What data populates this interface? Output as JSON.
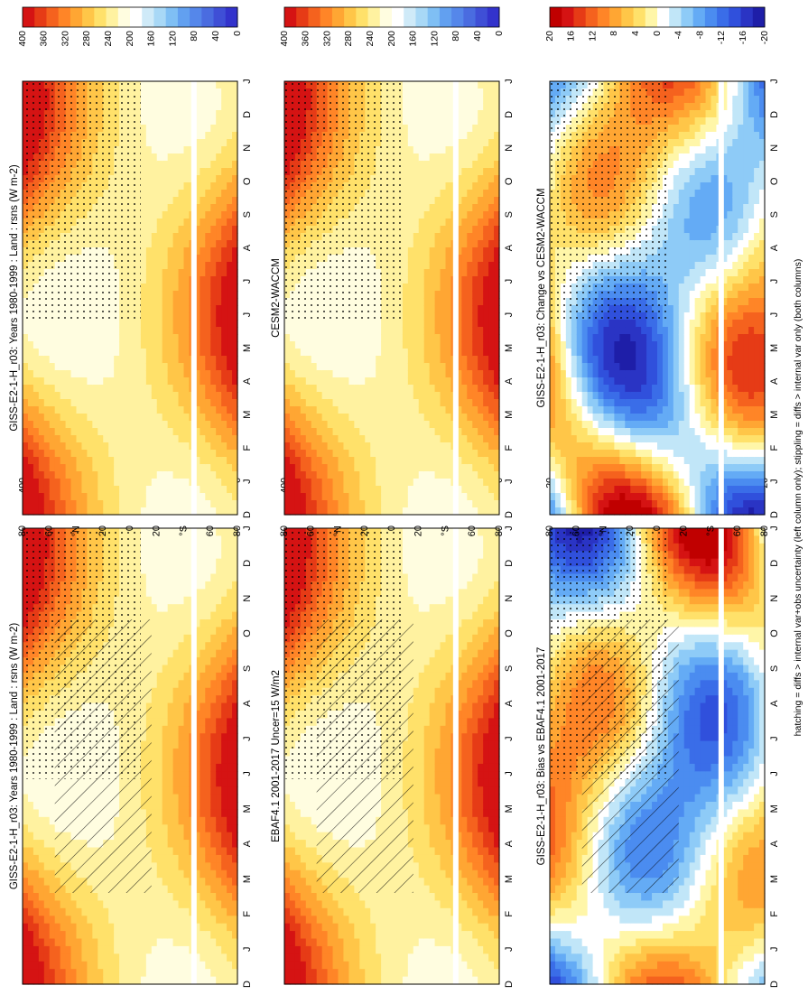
{
  "figure": {
    "footnote": "hatching = diffs > internal var+obs uncertainty (left column only); stippling = diffs > internal var only (both columns)"
  },
  "months": [
    "D",
    "J",
    "F",
    "M",
    "A",
    "M",
    "J",
    "J",
    "A",
    "S",
    "O",
    "N",
    "D",
    "J"
  ],
  "latitude_ticks": [
    "80",
    "60",
    "°N",
    "20",
    "0",
    "20",
    "°S",
    "60",
    "80"
  ],
  "colors": {
    "abs_scale": [
      "#3333cc",
      "#3f4fd6",
      "#4a6ce0",
      "#5587ea",
      "#62a0f0",
      "#7fbff4",
      "#a8d8f6",
      "#cfeaf8",
      "#ffffff",
      "#fffde0",
      "#fff2a0",
      "#ffe16a",
      "#ffc648",
      "#ffa633",
      "#ff8527",
      "#f5621e",
      "#e63b16",
      "#d51313"
    ],
    "diff_scale": [
      "#1e1ea8",
      "#2a34c4",
      "#3050dc",
      "#3a6de8",
      "#4b8cf0",
      "#64abf5",
      "#8ecbf7",
      "#c1e6f8",
      "#ffffff",
      "#fff6a8",
      "#ffe16a",
      "#ffc648",
      "#ffa633",
      "#ff8527",
      "#f5621e",
      "#e63b16",
      "#d51313",
      "#c00000"
    ]
  },
  "chart_data": [
    {
      "type": "heatmap",
      "title": "GISS-E2-1-H_r03: Years 1980-1999 : Land : rsns (W m-2)",
      "x_labels": [
        "D",
        "J",
        "F",
        "M",
        "A",
        "M",
        "J",
        "J",
        "A",
        "S",
        "O",
        "N",
        "D",
        "J"
      ],
      "y_labels": [
        "80",
        "60",
        "°N",
        "20",
        "0",
        "20",
        "°S",
        "60",
        "80"
      ],
      "colorbar": {
        "ticks": [
          "400",
          "360",
          "320",
          "280",
          "240",
          "200",
          "160",
          "120",
          "80",
          "40",
          "0"
        ],
        "range": [
          0,
          400
        ]
      },
      "hatching": true,
      "stippling": true
    },
    {
      "type": "heatmap",
      "title": "GISS-E2-1-H_r03: Years 1980-1999 : Land : rsns (W m-2)",
      "x_labels": [
        "D",
        "J",
        "F",
        "M",
        "A",
        "M",
        "J",
        "J",
        "A",
        "S",
        "O",
        "N",
        "D",
        "J"
      ],
      "y_labels": [
        "80",
        "60",
        "°N",
        "20",
        "0",
        "20",
        "°S",
        "60",
        "80"
      ],
      "colorbar": {
        "ticks": [
          "400",
          "360",
          "320",
          "280",
          "240",
          "200",
          "160",
          "120",
          "80",
          "40",
          "0"
        ],
        "range": [
          0,
          400
        ]
      },
      "stippling": true
    },
    {
      "type": "heatmap",
      "title": "EBAF4.1 2001-2017 Uncer=15 W/m2",
      "x_labels": [
        "D",
        "J",
        "F",
        "M",
        "A",
        "M",
        "J",
        "J",
        "A",
        "S",
        "O",
        "N",
        "D",
        "J"
      ],
      "y_labels": [
        "80",
        "60",
        "°N",
        "20",
        "0",
        "20",
        "°S",
        "60",
        "80"
      ],
      "colorbar": {
        "ticks": [
          "400",
          "360",
          "320",
          "280",
          "240",
          "200",
          "160",
          "120",
          "80",
          "40",
          "0"
        ],
        "range": [
          0,
          400
        ]
      },
      "hatching": true,
      "stippling": true
    },
    {
      "type": "heatmap",
      "title": "CESM2-WACCM",
      "x_labels": [
        "D",
        "J",
        "F",
        "M",
        "A",
        "M",
        "J",
        "J",
        "A",
        "S",
        "O",
        "N",
        "D",
        "J"
      ],
      "y_labels": [
        "80",
        "60",
        "°N",
        "20",
        "0",
        "20",
        "°S",
        "60",
        "80"
      ],
      "colorbar": {
        "ticks": [
          "400",
          "360",
          "320",
          "280",
          "240",
          "200",
          "160",
          "120",
          "80",
          "40",
          "0"
        ],
        "range": [
          0,
          400
        ]
      },
      "stippling": true
    },
    {
      "type": "heatmap",
      "title": "GISS-E2-1-H_r03: Bias vs EBAF4.1 2001-2017",
      "x_labels": [
        "D",
        "J",
        "F",
        "M",
        "A",
        "M",
        "J",
        "J",
        "A",
        "S",
        "O",
        "N",
        "D",
        "J"
      ],
      "y_labels": [
        "80",
        "60",
        "°N",
        "20",
        "0",
        "20",
        "°S",
        "60",
        "80"
      ],
      "colorbar": {
        "ticks": [
          "20",
          "16",
          "12",
          "8",
          "4",
          "0",
          "-4",
          "-8",
          "-12",
          "-16",
          "-20"
        ],
        "range": [
          -20,
          20
        ]
      },
      "hatching": true,
      "stippling": true
    },
    {
      "type": "heatmap",
      "title": "GISS-E2-1-H_r03: Change vs CESM2-WACCM",
      "x_labels": [
        "D",
        "J",
        "F",
        "M",
        "A",
        "M",
        "J",
        "J",
        "A",
        "S",
        "O",
        "N",
        "D",
        "J"
      ],
      "y_labels": [
        "80",
        "60",
        "°N",
        "20",
        "0",
        "20",
        "°S",
        "60",
        "80"
      ],
      "colorbar": {
        "ticks": [
          "20",
          "16",
          "12",
          "8",
          "4",
          "0",
          "-4",
          "-8",
          "-12",
          "-16",
          "-20"
        ],
        "range": [
          -20,
          20
        ]
      },
      "stippling": true
    }
  ]
}
